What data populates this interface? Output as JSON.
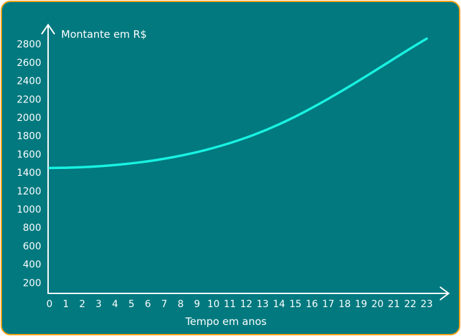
{
  "colors": {
    "board": "#01797f",
    "border": "#f5a31c",
    "curve": "#19f2e1",
    "chalk": "#ffffff"
  },
  "chart_data": {
    "type": "line",
    "xlabel": "Tempo em anos",
    "ylabel": "Montante em R$",
    "xlim": [
      0,
      23
    ],
    "ylim": [
      120,
      2900
    ],
    "x_ticks": [
      "0",
      "1",
      "2",
      "3",
      "4",
      "5",
      "6",
      "7",
      "8",
      "9",
      "10",
      "11",
      "12",
      "13",
      "14",
      "15",
      "16",
      "17",
      "18",
      "19",
      "20",
      "21",
      "22",
      "23"
    ],
    "y_ticks": [
      "200",
      "400",
      "600",
      "800",
      "1000",
      "1200",
      "1400",
      "1600",
      "1800",
      "2000",
      "2200",
      "2400",
      "2600",
      "2800"
    ],
    "series": [
      {
        "color": "#19f2e1",
        "x": [
          0,
          1,
          2,
          3,
          4,
          5,
          6,
          7,
          8,
          9,
          10,
          11,
          12,
          13,
          14,
          15,
          16,
          17,
          18,
          19,
          20,
          21,
          22,
          23
        ],
        "y": [
          1450,
          1452,
          1458,
          1468,
          1482,
          1500,
          1522,
          1550,
          1583,
          1622,
          1668,
          1720,
          1780,
          1848,
          1925,
          2010,
          2104,
          2203,
          2308,
          2416,
          2527,
          2640,
          2752,
          2860
        ]
      }
    ]
  }
}
